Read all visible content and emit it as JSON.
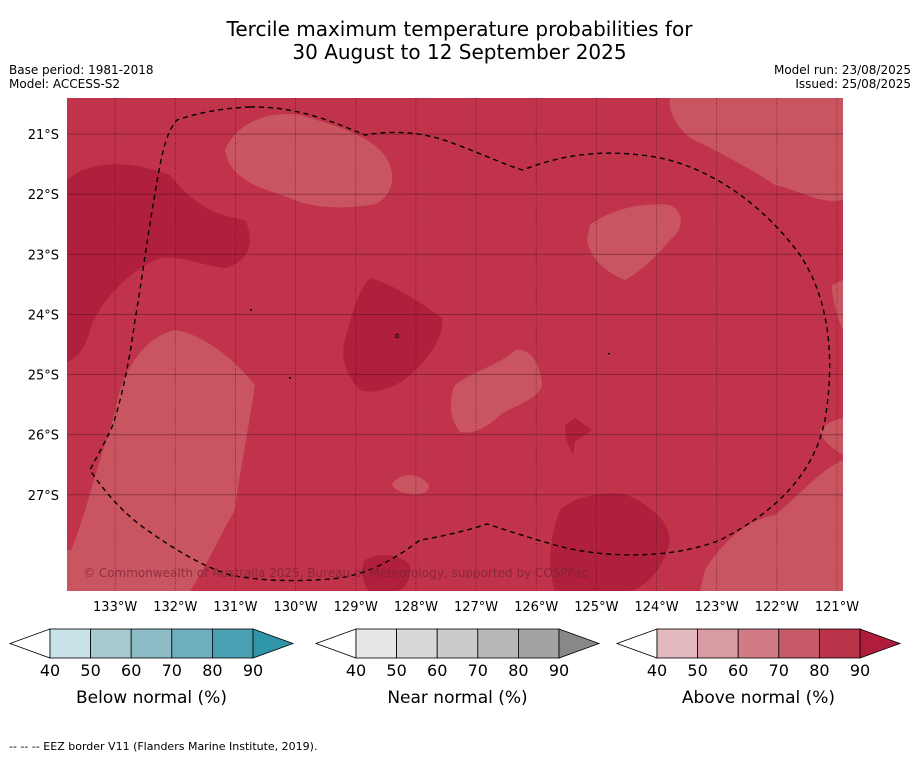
{
  "header": {
    "title_line1": "Tercile maximum temperature probabilities for",
    "title_line2": "30 August to 12 September 2025",
    "base_period": "Base period: 1981-2018",
    "model": "Model: ACCESS-S2",
    "model_run": "Model run: 23/08/2025",
    "issued": "Issued: 25/08/2025"
  },
  "chart_data": {
    "type": "heatmap",
    "title": "Tercile maximum temperature probabilities for 30 August to 12 September 2025",
    "x_ticks": [
      "133°W",
      "132°W",
      "131°W",
      "130°W",
      "129°W",
      "128°W",
      "127°W",
      "126°W",
      "125°W",
      "124°W",
      "123°W",
      "122°W",
      "121°W"
    ],
    "x_values": [
      -133,
      -132,
      -131,
      -130,
      -129,
      -128,
      -127,
      -126,
      -125,
      -124,
      -123,
      -122,
      -121
    ],
    "y_ticks": [
      "21°S",
      "22°S",
      "23°S",
      "24°S",
      "25°S",
      "26°S",
      "27°S"
    ],
    "y_values": [
      -21,
      -22,
      -23,
      -24,
      -25,
      -26,
      -27
    ],
    "xlim": [
      -133.8,
      -120.9
    ],
    "ylim": [
      -28.6,
      -20.4
    ],
    "grid": true,
    "dominant_category": "Above normal",
    "probability_classes_shown": [
      60,
      70,
      80
    ],
    "watermark": "© Commonwealth of Australia 2025, Bureau of Meteorology, supported by COSPPac",
    "colorbars": [
      {
        "name": "Below normal (%)",
        "ticks": [
          "40",
          "50",
          "60",
          "70",
          "80",
          "90"
        ],
        "colors": [
          "#c9e2e8",
          "#a9c9d0",
          "#8dbcc7",
          "#6eafbf",
          "#4aa0b2",
          "#2f95a8"
        ]
      },
      {
        "name": "Near normal (%)",
        "ticks": [
          "40",
          "50",
          "60",
          "70",
          "80",
          "90"
        ],
        "colors": [
          "#e6e6e6",
          "#d8d8d8",
          "#cbcbcb",
          "#b8b8b8",
          "#a3a3a3",
          "#888888"
        ]
      },
      {
        "name": "Above normal (%)",
        "ticks": [
          "40",
          "50",
          "60",
          "70",
          "80",
          "90"
        ],
        "colors": [
          "#e3b9bf",
          "#d89aa3",
          "#d07b86",
          "#c65a69",
          "#bb3349",
          "#b01c3b"
        ]
      }
    ]
  },
  "footer": {
    "eez_note": "--  --  -- EEZ border V11 (Flanders Marine Institute, 2019)."
  }
}
